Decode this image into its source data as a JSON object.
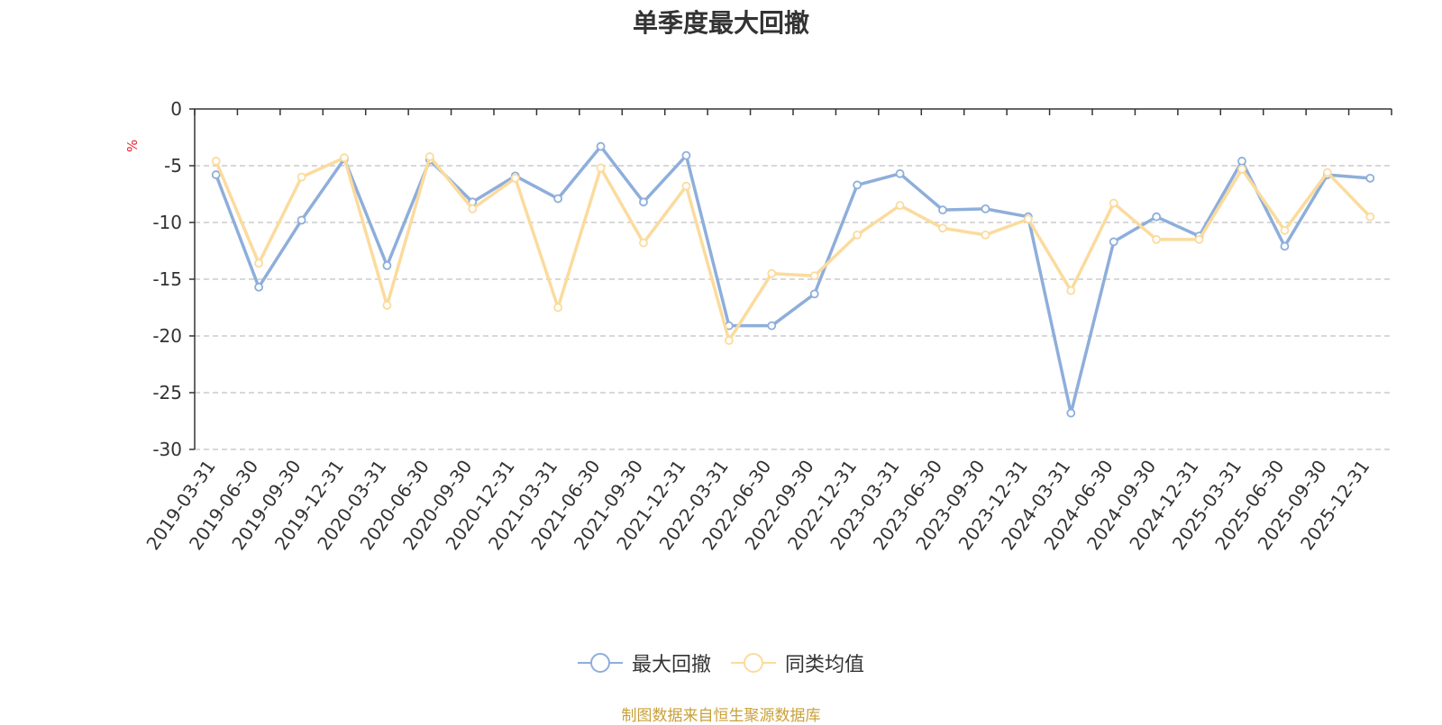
{
  "chart_data": {
    "type": "line",
    "title": "单季度最大回撤",
    "ylabel": "%",
    "ylim": [
      -30,
      0
    ],
    "yticks": [
      0,
      -5,
      -10,
      -15,
      -20,
      -25,
      -30
    ],
    "grid": true,
    "legend_position": "bottom",
    "categories": [
      "2019-03-31",
      "2019-06-30",
      "2019-09-30",
      "2019-12-31",
      "2020-03-31",
      "2020-06-30",
      "2020-09-30",
      "2020-12-31",
      "2021-03-31",
      "2021-06-30",
      "2021-09-30",
      "2021-12-31",
      "2022-03-31",
      "2022-06-30",
      "2022-09-30",
      "2022-12-31",
      "2023-03-31",
      "2023-06-30",
      "2023-09-30",
      "2023-12-31",
      "2024-03-31",
      "2024-06-30",
      "2024-09-30",
      "2024-12-31",
      "2025-03-31",
      "2025-06-30",
      "2025-09-30",
      "2025-12-31"
    ],
    "series": [
      {
        "name": "最大回撤",
        "color": "#8eaedb",
        "values": [
          -5.8,
          -15.7,
          -9.8,
          -4.4,
          -13.8,
          -4.5,
          -8.2,
          -5.9,
          -7.9,
          -3.3,
          -8.2,
          -4.1,
          -19.1,
          -19.1,
          -16.3,
          -6.7,
          -5.7,
          -8.9,
          -8.8,
          -9.5,
          -26.8,
          -11.7,
          -9.5,
          -11.2,
          -4.6,
          -12.1,
          -5.8,
          -6.1
        ]
      },
      {
        "name": "同类均值",
        "color": "#fbdb9d",
        "values": [
          -4.6,
          -13.6,
          -6.0,
          -4.3,
          -17.3,
          -4.2,
          -8.8,
          -6.1,
          -17.5,
          -5.2,
          -11.8,
          -6.8,
          -20.4,
          -14.5,
          -14.7,
          -11.1,
          -8.5,
          -10.5,
          -11.1,
          -9.7,
          -16.0,
          -8.3,
          -11.5,
          -11.5,
          -5.3,
          -10.7,
          -5.6,
          -9.5
        ]
      }
    ]
  },
  "footer": {
    "source": "制图数据来自恒生聚源数据库"
  }
}
